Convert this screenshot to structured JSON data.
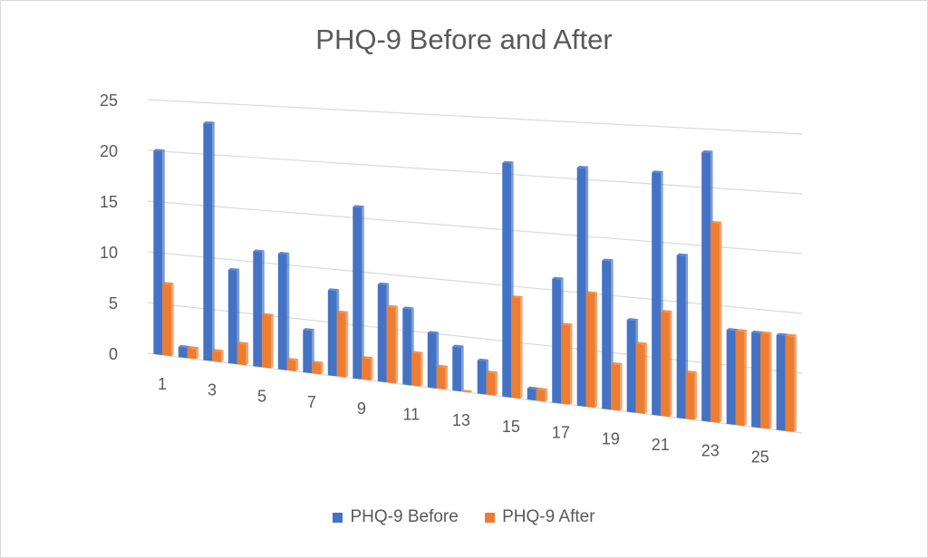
{
  "chart_data": {
    "type": "bar",
    "title": "PHQ-9 Before and After",
    "categories": [
      "1",
      "2",
      "3",
      "4",
      "5",
      "6",
      "7",
      "8",
      "9",
      "10",
      "11",
      "12",
      "13",
      "14",
      "15",
      "16",
      "17",
      "18",
      "19",
      "20",
      "21",
      "22",
      "23",
      "24",
      "25",
      "26"
    ],
    "x_tick_labels": [
      "1",
      "3",
      "5",
      "7",
      "9",
      "11",
      "13",
      "15",
      "17",
      "19",
      "21",
      "23",
      "25"
    ],
    "y_tick_labels": [
      "0",
      "5",
      "10",
      "15",
      "20",
      "25"
    ],
    "ylim": [
      0,
      25
    ],
    "series": [
      {
        "name": "PHQ-9 Before",
        "color": "#4472c4",
        "values": [
          20,
          1,
          23,
          9,
          11,
          11,
          4,
          8,
          16,
          9,
          7,
          5,
          4,
          3,
          21,
          1,
          11,
          21,
          13,
          8,
          21,
          14,
          23,
          8,
          8,
          8
        ]
      },
      {
        "name": "PHQ-9 After",
        "color": "#ed7d31",
        "values": [
          7,
          1,
          1,
          2,
          5,
          1,
          1,
          6,
          2,
          7,
          3,
          2,
          0,
          2,
          9,
          1,
          7,
          10,
          4,
          6,
          9,
          4,
          17,
          8,
          8,
          8
        ]
      }
    ],
    "legend_position": "bottom",
    "grid": true
  }
}
